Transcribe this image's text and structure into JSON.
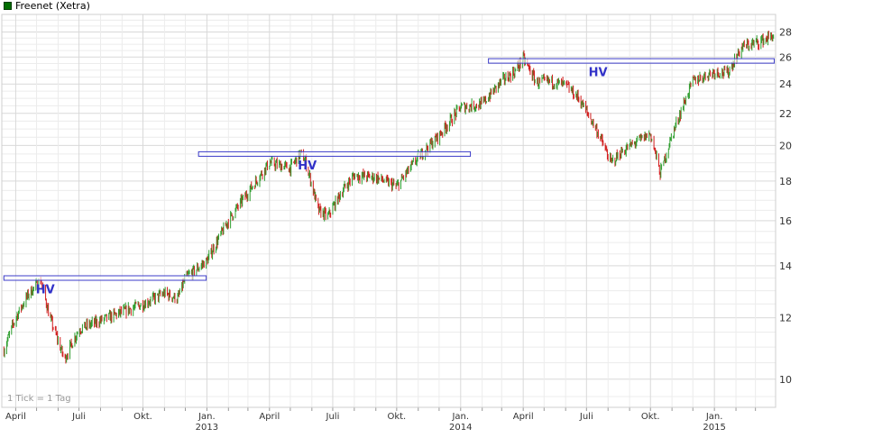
{
  "legend": {
    "label": "Freenet (Xetra)",
    "color": "#006e00"
  },
  "scale_note": "1 Tick = 1 Tag",
  "chart_data": {
    "type": "line",
    "series": [
      {
        "name": "Freenet (Xetra)",
        "x": [
          "2012-03-15",
          "2012-04-01",
          "2012-04-20",
          "2012-05-07",
          "2012-05-20",
          "2012-06-10",
          "2012-07-01",
          "2012-08-01",
          "2012-09-01",
          "2012-10-01",
          "2012-11-01",
          "2012-11-20",
          "2012-12-01",
          "2013-01-01",
          "2013-02-01",
          "2013-03-01",
          "2013-04-01",
          "2013-05-01",
          "2013-05-15",
          "2013-05-22",
          "2013-06-10",
          "2013-06-24",
          "2013-07-15",
          "2013-08-01",
          "2013-09-01",
          "2013-10-01",
          "2013-11-01",
          "2013-12-01",
          "2014-01-01",
          "2014-02-01",
          "2014-03-01",
          "2014-03-20",
          "2014-04-01",
          "2014-04-20",
          "2014-05-10",
          "2014-06-01",
          "2014-06-20",
          "2014-07-15",
          "2014-08-05",
          "2014-08-20",
          "2014-09-10",
          "2014-10-01",
          "2014-10-15",
          "2014-11-01",
          "2014-12-01",
          "2015-01-01",
          "2015-01-20",
          "2015-02-10",
          "2015-03-01",
          "2015-03-27"
        ],
        "values": [
          10.9,
          12.0,
          12.9,
          13.4,
          12.0,
          10.6,
          11.6,
          11.9,
          12.2,
          12.5,
          12.9,
          12.7,
          13.5,
          14.2,
          16.0,
          17.4,
          19.0,
          18.7,
          19.5,
          19.2,
          16.5,
          16.2,
          17.5,
          18.3,
          18.2,
          17.7,
          19.3,
          20.6,
          22.4,
          22.6,
          24.2,
          24.9,
          25.9,
          24.1,
          24.2,
          23.9,
          23.0,
          21.0,
          19.0,
          19.6,
          20.2,
          20.7,
          18.4,
          20.6,
          24.2,
          24.9,
          24.8,
          26.8,
          27.1,
          27.7
        ]
      }
    ],
    "xaxis": {
      "tick_labels": [
        "April",
        "Juli",
        "Okt.",
        "Jan.",
        "April",
        "Juli",
        "Okt.",
        "Jan.",
        "April",
        "Juli",
        "Okt.",
        "Jan."
      ],
      "year_labels": [
        "2013",
        "2014",
        "2015"
      ],
      "range": [
        "2012-03-12",
        "2015-03-30"
      ]
    },
    "yaxis": {
      "scale": "log",
      "range": [
        9.2,
        29.5
      ],
      "tick_labels": [
        "10",
        "12",
        "14",
        "16",
        "18",
        "20",
        "22",
        "24",
        "26",
        "28"
      ]
    },
    "grid": true,
    "annotations": [
      {
        "label": "HV",
        "x_start": "2012-03-15",
        "x_end": "2012-12-31",
        "level": 13.5
      },
      {
        "label": "HV",
        "x_start": "2012-12-20",
        "x_end": "2014-01-15",
        "level": 19.5
      },
      {
        "label": "HV",
        "x_start": "2014-02-10",
        "x_end": "2015-03-28",
        "level": 25.7
      }
    ]
  }
}
